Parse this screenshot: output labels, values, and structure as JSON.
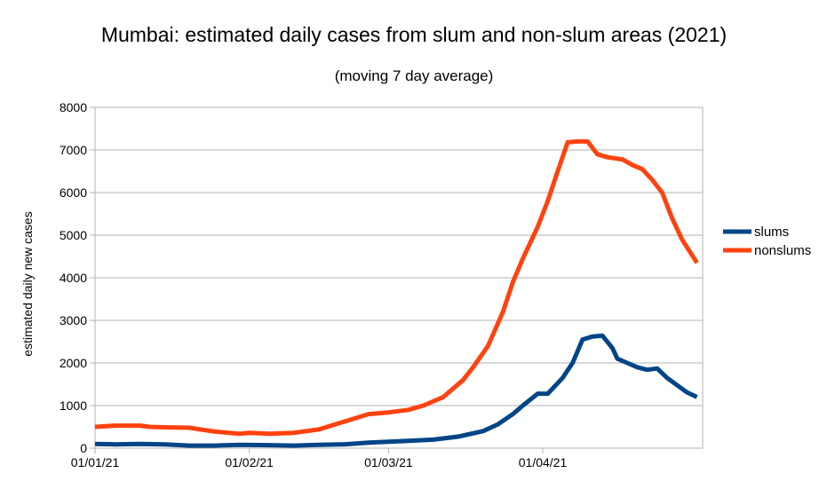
{
  "chart_data": {
    "type": "line",
    "title": "Mumbai: estimated daily cases from slum and non-slum areas (2021)",
    "subtitle": "(moving 7 day average)",
    "ylabel": "estimated daily new cases",
    "xlabel": "",
    "ylim": [
      0,
      8000
    ],
    "yticks": [
      0,
      1000,
      2000,
      3000,
      4000,
      5000,
      6000,
      7000,
      8000
    ],
    "xlim": [
      "2021-01-01",
      "2021-04-28"
    ],
    "xticks": [
      {
        "date": "2021-01-01",
        "label": "01/01/21"
      },
      {
        "date": "2021-02-01",
        "label": "01/02/21"
      },
      {
        "date": "2021-03-01",
        "label": "01/03/21"
      },
      {
        "date": "2021-04-01",
        "label": "01/04/21"
      }
    ],
    "grid": true,
    "legend_position": "right",
    "series": [
      {
        "name": "slums",
        "color": "#004586",
        "points": [
          [
            "2021-01-01",
            100
          ],
          [
            "2021-01-05",
            90
          ],
          [
            "2021-01-10",
            100
          ],
          [
            "2021-01-15",
            90
          ],
          [
            "2021-01-20",
            60
          ],
          [
            "2021-01-25",
            60
          ],
          [
            "2021-01-30",
            80
          ],
          [
            "2021-02-05",
            70
          ],
          [
            "2021-02-10",
            60
          ],
          [
            "2021-02-15",
            80
          ],
          [
            "2021-02-20",
            90
          ],
          [
            "2021-02-25",
            130
          ],
          [
            "2021-03-01",
            150
          ],
          [
            "2021-03-05",
            170
          ],
          [
            "2021-03-10",
            200
          ],
          [
            "2021-03-15",
            270
          ],
          [
            "2021-03-20",
            400
          ],
          [
            "2021-03-23",
            560
          ],
          [
            "2021-03-26",
            800
          ],
          [
            "2021-03-28",
            1000
          ],
          [
            "2021-03-31",
            1280
          ],
          [
            "2021-04-02",
            1280
          ],
          [
            "2021-04-05",
            1650
          ],
          [
            "2021-04-07",
            2000
          ],
          [
            "2021-04-09",
            2550
          ],
          [
            "2021-04-11",
            2620
          ],
          [
            "2021-04-13",
            2640
          ],
          [
            "2021-04-15",
            2350
          ],
          [
            "2021-04-16",
            2100
          ],
          [
            "2021-04-18",
            2000
          ],
          [
            "2021-04-20",
            1900
          ],
          [
            "2021-04-22",
            1840
          ],
          [
            "2021-04-24",
            1870
          ],
          [
            "2021-04-26",
            1650
          ],
          [
            "2021-04-28",
            1480
          ],
          [
            "2021-04-30",
            1310
          ],
          [
            "2021-05-02",
            1200
          ]
        ]
      },
      {
        "name": "nonslums",
        "color": "#ff420e",
        "points": [
          [
            "2021-01-01",
            500
          ],
          [
            "2021-01-05",
            530
          ],
          [
            "2021-01-10",
            530
          ],
          [
            "2021-01-12",
            500
          ],
          [
            "2021-01-15",
            490
          ],
          [
            "2021-01-20",
            480
          ],
          [
            "2021-01-25",
            390
          ],
          [
            "2021-01-30",
            340
          ],
          [
            "2021-02-01",
            360
          ],
          [
            "2021-02-05",
            340
          ],
          [
            "2021-02-10",
            360
          ],
          [
            "2021-02-15",
            440
          ],
          [
            "2021-02-20",
            620
          ],
          [
            "2021-02-25",
            800
          ],
          [
            "2021-03-01",
            840
          ],
          [
            "2021-03-05",
            900
          ],
          [
            "2021-03-08",
            1000
          ],
          [
            "2021-03-12",
            1200
          ],
          [
            "2021-03-16",
            1600
          ],
          [
            "2021-03-18",
            1900
          ],
          [
            "2021-03-21",
            2400
          ],
          [
            "2021-03-24",
            3200
          ],
          [
            "2021-03-26",
            3900
          ],
          [
            "2021-03-28",
            4450
          ],
          [
            "2021-03-31",
            5200
          ],
          [
            "2021-04-02",
            5800
          ],
          [
            "2021-04-04",
            6500
          ],
          [
            "2021-04-06",
            7180
          ],
          [
            "2021-04-08",
            7200
          ],
          [
            "2021-04-10",
            7200
          ],
          [
            "2021-04-12",
            6900
          ],
          [
            "2021-04-14",
            6830
          ],
          [
            "2021-04-17",
            6780
          ],
          [
            "2021-04-19",
            6650
          ],
          [
            "2021-04-21",
            6550
          ],
          [
            "2021-04-23",
            6300
          ],
          [
            "2021-04-25",
            6000
          ],
          [
            "2021-04-27",
            5400
          ],
          [
            "2021-04-29",
            4900
          ],
          [
            "2021-05-02",
            4350
          ]
        ]
      }
    ]
  }
}
